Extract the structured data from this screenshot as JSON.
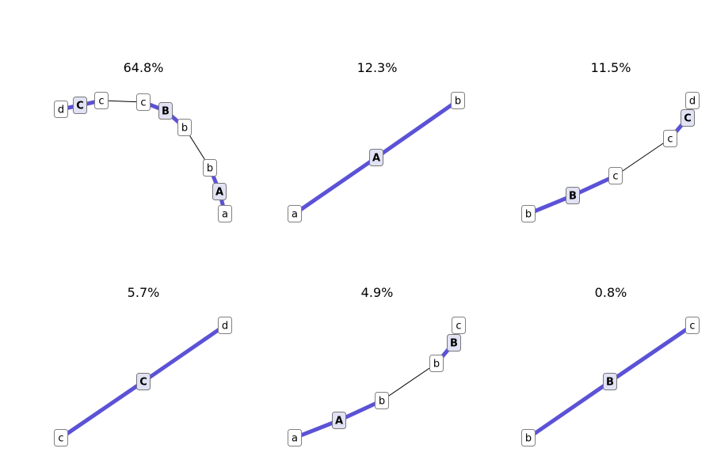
{
  "panels": [
    {
      "title": "64.8%",
      "nodes": [
        {
          "label": "d",
          "center": false
        },
        {
          "label": "C",
          "center": true
        },
        {
          "label": "c",
          "center": false
        },
        {
          "label": "c",
          "center": false
        },
        {
          "label": "B",
          "center": true
        },
        {
          "label": "b",
          "center": false
        },
        {
          "label": "b",
          "center": false
        },
        {
          "label": "A",
          "center": true
        },
        {
          "label": "a",
          "center": false
        }
      ],
      "edges": [
        {
          "from": 0,
          "to": 1,
          "kind": "thick"
        },
        {
          "from": 1,
          "to": 2,
          "kind": "thick"
        },
        {
          "from": 2,
          "to": 3,
          "kind": "thin"
        },
        {
          "from": 3,
          "to": 4,
          "kind": "thick"
        },
        {
          "from": 4,
          "to": 5,
          "kind": "thick"
        },
        {
          "from": 5,
          "to": 6,
          "kind": "thin"
        },
        {
          "from": 6,
          "to": 7,
          "kind": "thick"
        },
        {
          "from": 7,
          "to": 8,
          "kind": "thick"
        }
      ]
    },
    {
      "title": "12.3%",
      "nodes": [
        {
          "label": "a",
          "center": false
        },
        {
          "label": "A",
          "center": true
        },
        {
          "label": "b",
          "center": false
        }
      ],
      "edges": [
        {
          "from": 0,
          "to": 1,
          "kind": "thick"
        },
        {
          "from": 1,
          "to": 2,
          "kind": "thick"
        }
      ]
    },
    {
      "title": "11.5%",
      "nodes": [
        {
          "label": "b",
          "center": false
        },
        {
          "label": "B",
          "center": true
        },
        {
          "label": "c",
          "center": false
        },
        {
          "label": "c",
          "center": false
        },
        {
          "label": "C",
          "center": true
        },
        {
          "label": "d",
          "center": false
        }
      ],
      "edges": [
        {
          "from": 0,
          "to": 1,
          "kind": "thick"
        },
        {
          "from": 1,
          "to": 2,
          "kind": "thick"
        },
        {
          "from": 2,
          "to": 3,
          "kind": "thin"
        },
        {
          "from": 3,
          "to": 4,
          "kind": "thick"
        },
        {
          "from": 4,
          "to": 5,
          "kind": "thick"
        }
      ]
    },
    {
      "title": "5.7%",
      "nodes": [
        {
          "label": "c",
          "center": false
        },
        {
          "label": "C",
          "center": true
        },
        {
          "label": "d",
          "center": false
        }
      ],
      "edges": [
        {
          "from": 0,
          "to": 1,
          "kind": "thick"
        },
        {
          "from": 1,
          "to": 2,
          "kind": "thick"
        }
      ]
    },
    {
      "title": "4.9%",
      "nodes": [
        {
          "label": "a",
          "center": false
        },
        {
          "label": "A",
          "center": true
        },
        {
          "label": "b",
          "center": false
        },
        {
          "label": "b",
          "center": false
        },
        {
          "label": "B",
          "center": true
        },
        {
          "label": "c",
          "center": false
        }
      ],
      "edges": [
        {
          "from": 0,
          "to": 1,
          "kind": "thick"
        },
        {
          "from": 1,
          "to": 2,
          "kind": "thick"
        },
        {
          "from": 2,
          "to": 3,
          "kind": "thin"
        },
        {
          "from": 3,
          "to": 4,
          "kind": "thick"
        },
        {
          "from": 4,
          "to": 5,
          "kind": "thick"
        }
      ]
    },
    {
      "title": "0.8%",
      "nodes": [
        {
          "label": "b",
          "center": false
        },
        {
          "label": "B",
          "center": true
        },
        {
          "label": "c",
          "center": false
        }
      ],
      "edges": [
        {
          "from": 0,
          "to": 1,
          "kind": "thick"
        },
        {
          "from": 1,
          "to": 2,
          "kind": "thick"
        }
      ]
    }
  ],
  "colors": {
    "thick_edge": "#5b52d6",
    "thin_edge": "#000000",
    "center_node_fill": "#e2e2f5",
    "node_fill": "#ffffff",
    "node_border": "#808080"
  }
}
